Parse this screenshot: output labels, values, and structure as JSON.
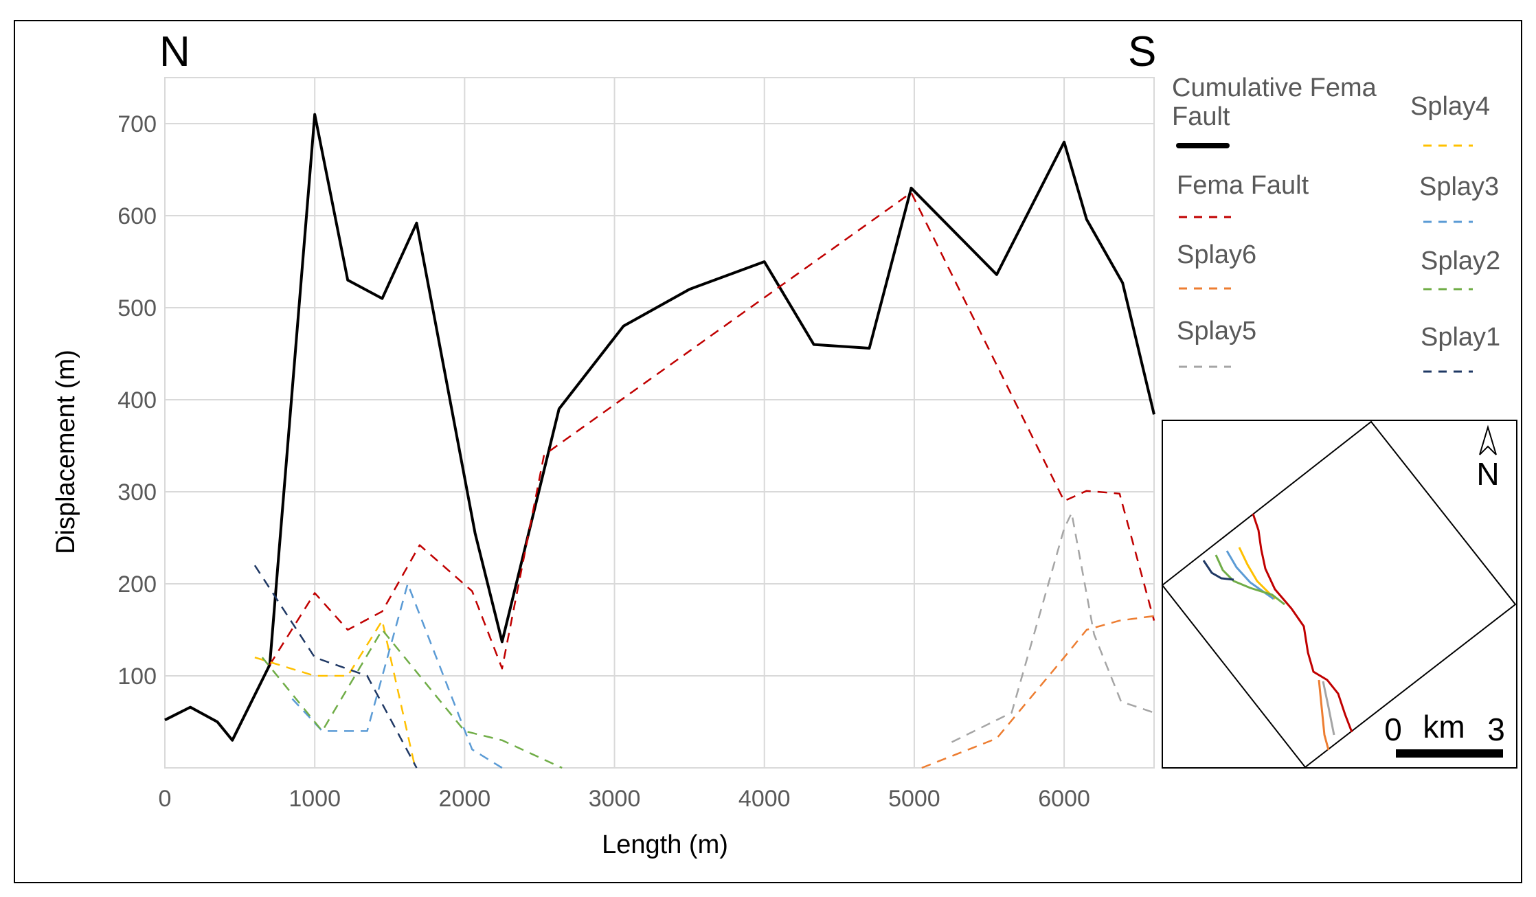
{
  "chart_data": {
    "type": "line",
    "title": "",
    "xlabel": "Length (m)",
    "ylabel": "Displacement (m)",
    "xlim": [
      0,
      6600
    ],
    "ylim": [
      0,
      750
    ],
    "x_ticks": [
      0,
      1000,
      2000,
      3000,
      4000,
      5000,
      6000
    ],
    "y_ticks": [
      100,
      200,
      300,
      400,
      500,
      600,
      700
    ],
    "grid": true,
    "legend_placement": "right",
    "direction_labels": {
      "left": "N",
      "right": "S"
    },
    "series": [
      {
        "name": "Cumulative Fema Fault",
        "style": "solid",
        "color": "#000000",
        "points": [
          [
            0,
            52
          ],
          [
            170,
            66
          ],
          [
            350,
            50
          ],
          [
            450,
            30
          ],
          [
            700,
            112
          ],
          [
            1000,
            710
          ],
          [
            1220,
            530
          ],
          [
            1450,
            510
          ],
          [
            1680,
            592
          ],
          [
            2070,
            255
          ],
          [
            2250,
            137
          ],
          [
            2630,
            390
          ],
          [
            3060,
            480
          ],
          [
            3500,
            520
          ],
          [
            4000,
            550
          ],
          [
            4330,
            460
          ],
          [
            4700,
            456
          ],
          [
            4980,
            630
          ],
          [
            5550,
            536
          ],
          [
            6000,
            680
          ],
          [
            6150,
            596
          ],
          [
            6390,
            527
          ],
          [
            6600,
            384
          ]
        ]
      },
      {
        "name": "Fema Fault",
        "style": "dashed",
        "color": "#C00000",
        "points": [
          [
            700,
            112
          ],
          [
            1000,
            190
          ],
          [
            1220,
            150
          ],
          [
            1450,
            170
          ],
          [
            1700,
            242
          ],
          [
            2050,
            192
          ],
          [
            2250,
            108
          ],
          [
            2530,
            340
          ],
          [
            4980,
            625
          ],
          [
            6000,
            290
          ],
          [
            6150,
            301
          ],
          [
            6370,
            298
          ],
          [
            6600,
            160
          ]
        ]
      },
      {
        "name": "Splay6",
        "style": "dashed",
        "color": "#ED7D31",
        "points": [
          [
            5050,
            0
          ],
          [
            5550,
            32
          ],
          [
            6000,
            120
          ],
          [
            6150,
            150
          ],
          [
            6370,
            160
          ],
          [
            6600,
            165
          ]
        ]
      },
      {
        "name": "Splay5",
        "style": "dashed",
        "color": "#A5A5A5",
        "points": [
          [
            5250,
            28
          ],
          [
            5650,
            60
          ],
          [
            6000,
            260
          ],
          [
            6050,
            277
          ],
          [
            6200,
            145
          ],
          [
            6380,
            72
          ],
          [
            6600,
            60
          ]
        ]
      },
      {
        "name": "Splay4",
        "style": "dashed",
        "color": "#FFC000",
        "points": [
          [
            600,
            120
          ],
          [
            1000,
            100
          ],
          [
            1220,
            100
          ],
          [
            1450,
            160
          ],
          [
            1670,
            0
          ]
        ]
      },
      {
        "name": "Splay3",
        "style": "dashed",
        "color": "#5B9BD5",
        "points": [
          [
            850,
            75
          ],
          [
            1050,
            40
          ],
          [
            1200,
            40
          ],
          [
            1350,
            40
          ],
          [
            1620,
            200
          ],
          [
            2050,
            20
          ],
          [
            2250,
            0
          ]
        ]
      },
      {
        "name": "Splay2",
        "style": "dashed",
        "color": "#70AD47",
        "points": [
          [
            650,
            120
          ],
          [
            1050,
            40
          ],
          [
            1450,
            150
          ],
          [
            2000,
            40
          ],
          [
            2250,
            30
          ],
          [
            2650,
            0
          ]
        ]
      },
      {
        "name": "Splay1",
        "style": "dashed",
        "color": "#1F3864",
        "points": [
          [
            600,
            220
          ],
          [
            1000,
            120
          ],
          [
            1350,
            100
          ],
          [
            1680,
            0
          ]
        ]
      }
    ],
    "inset_map": {
      "north_label": "N",
      "scale_bar": {
        "start": "0",
        "unit": "km",
        "end": "3"
      }
    }
  }
}
